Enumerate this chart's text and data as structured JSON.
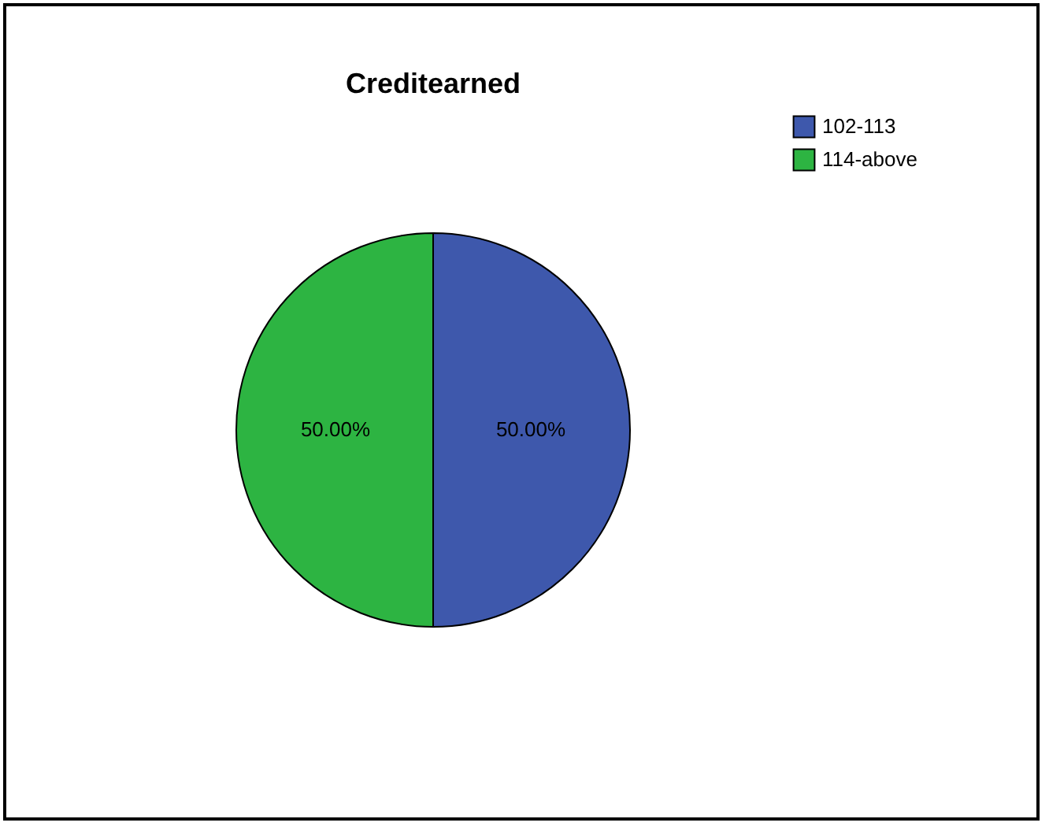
{
  "chart_data": {
    "type": "pie",
    "title": "Creditearned",
    "categories": [
      "102-113",
      "114-above"
    ],
    "values": [
      50,
      50
    ],
    "colors": [
      "#3e58ac",
      "#2db442"
    ],
    "value_labels": [
      "50.00%",
      "50.00%"
    ],
    "legend": "top right"
  }
}
